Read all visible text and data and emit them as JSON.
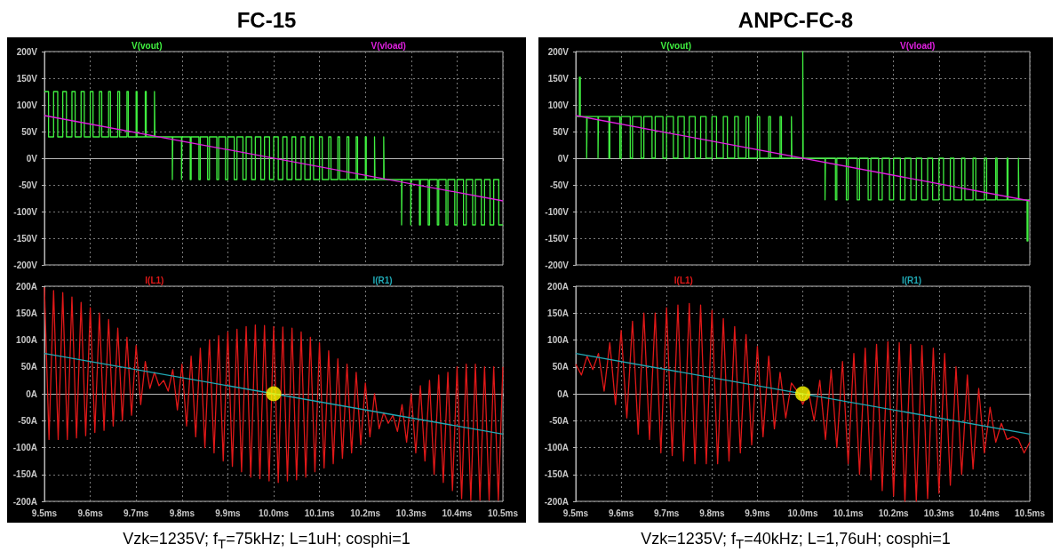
{
  "chart_data": [
    {
      "type": "line",
      "title": "FC-15",
      "xlim": [
        9.5,
        10.5
      ],
      "xticks": [
        9.5,
        9.6,
        9.7,
        9.8,
        9.9,
        10.0,
        10.1,
        10.2,
        10.3,
        10.4,
        10.5
      ],
      "ylim": [
        -200,
        200
      ],
      "yticks": [
        {
          "value": -200,
          "label": "-200V"
        },
        {
          "value": -150,
          "label": "-150V"
        },
        {
          "value": -100,
          "label": "-100V"
        },
        {
          "value": -50,
          "label": "-50V"
        },
        {
          "value": 0,
          "label": "0V"
        },
        {
          "value": 50,
          "label": "50V"
        },
        {
          "value": 100,
          "label": "100V"
        },
        {
          "value": 150,
          "label": "150V"
        },
        {
          "value": 200,
          "label": "200V"
        }
      ],
      "grid": true,
      "legend": "top",
      "tick_labels": "y",
      "series": [
        {
          "name": "V(vout)",
          "type": "step",
          "color": "#40f040",
          "x": [
            9.5,
            9.509,
            9.52,
            9.529,
            9.54,
            9.548,
            9.56,
            9.567,
            9.58,
            9.587,
            9.6,
            9.606,
            9.62,
            9.625,
            9.64,
            9.644,
            9.66,
            9.664,
            9.68,
            9.683,
            9.7,
            9.702,
            9.72,
            9.722,
            9.74,
            9.741,
            9.76,
            9.779,
            9.78,
            9.799,
            9.8,
            9.818,
            9.82,
            9.837,
            9.84,
            9.856,
            9.86,
            9.876,
            9.88,
            9.895,
            9.9,
            9.914,
            9.92,
            9.933,
            9.94,
            9.952,
            9.96,
            9.972,
            9.98,
            9.991,
            10.0,
            10.01,
            10.02,
            10.029,
            10.04,
            10.048,
            10.06,
            10.068,
            10.08,
            10.087,
            10.1,
            10.106,
            10.12,
            10.125,
            10.14,
            10.144,
            10.16,
            10.164,
            10.18,
            10.183,
            10.2,
            10.202,
            10.22,
            10.221,
            10.24,
            10.241,
            10.26,
            10.279,
            10.28,
            10.299,
            10.3,
            10.318,
            10.32,
            10.337,
            10.34,
            10.357,
            10.36,
            10.376,
            10.38,
            10.395,
            10.4,
            10.414,
            10.42,
            10.434,
            10.44,
            10.453,
            10.46,
            10.472,
            10.48,
            10.491,
            10.5
          ],
          "values": [
            125,
            40,
            125,
            40,
            125,
            40,
            125,
            40,
            125,
            40,
            125,
            40,
            125,
            40,
            125,
            40,
            125,
            40,
            125,
            40,
            125,
            40,
            125,
            40,
            125,
            40,
            40,
            -40,
            40,
            -40,
            40,
            -40,
            40,
            -40,
            40,
            -40,
            40,
            -40,
            40,
            -40,
            40,
            -40,
            40,
            -40,
            40,
            -40,
            40,
            -40,
            40,
            -40,
            40,
            -40,
            40,
            -40,
            40,
            -40,
            40,
            -40,
            40,
            -40,
            40,
            -40,
            40,
            -40,
            40,
            -40,
            40,
            -40,
            40,
            -40,
            40,
            -40,
            40,
            -40,
            40,
            -40,
            -40,
            -125,
            -40,
            -125,
            -40,
            -125,
            -40,
            -125,
            -40,
            -125,
            -40,
            -125,
            -40,
            -125,
            -40,
            -125,
            -40,
            -125,
            -40,
            -125,
            -40,
            -125,
            -40,
            -125,
            -125
          ]
        },
        {
          "name": "V(vload)",
          "color": "#e020e0",
          "x": [
            9.5,
            10.5
          ],
          "values": [
            80,
            -80
          ]
        }
      ]
    },
    {
      "type": "line",
      "annotations": [
        "Vzk=1235V; f$_{T}$=75kHz; L=1uH; cosphi=1"
      ],
      "xlim": [
        9.5,
        10.5
      ],
      "xticks": [
        {
          "value": 9.5,
          "label": "9.5ms"
        },
        {
          "value": 9.6,
          "label": "9.6ms"
        },
        {
          "value": 9.7,
          "label": "9.7ms"
        },
        {
          "value": 9.8,
          "label": "9.8ms"
        },
        {
          "value": 9.9,
          "label": "9.9ms"
        },
        {
          "value": 10.0,
          "label": "10.0ms"
        },
        {
          "value": 10.1,
          "label": "10.1ms"
        },
        {
          "value": 10.2,
          "label": "10.2ms"
        },
        {
          "value": 10.3,
          "label": "10.3ms"
        },
        {
          "value": 10.4,
          "label": "10.4ms"
        },
        {
          "value": 10.5,
          "label": "10.5ms"
        }
      ],
      "ylim": [
        -200,
        200
      ],
      "yticks": [
        {
          "value": -200,
          "label": "-200A"
        },
        {
          "value": -150,
          "label": "-150A"
        },
        {
          "value": -100,
          "label": "-100A"
        },
        {
          "value": -50,
          "label": "-50A"
        },
        {
          "value": 0,
          "label": "0A"
        },
        {
          "value": 50,
          "label": "50A"
        },
        {
          "value": 100,
          "label": "100A"
        },
        {
          "value": 150,
          "label": "150A"
        },
        {
          "value": 200,
          "label": "200A"
        }
      ],
      "grid": true,
      "legend": "top",
      "series": [
        {
          "name": "I(L1)",
          "color": "#e01818",
          "x": [
            9.5,
            9.51,
            9.52,
            9.53,
            9.54,
            9.55,
            9.56,
            9.57,
            9.58,
            9.59,
            9.6,
            9.61,
            9.62,
            9.63,
            9.64,
            9.65,
            9.66,
            9.67,
            9.68,
            9.69,
            9.7,
            9.71,
            9.72,
            9.73,
            9.74,
            9.75,
            9.76,
            9.77,
            9.78,
            9.79,
            9.8,
            9.81,
            9.82,
            9.83,
            9.84,
            9.85,
            9.86,
            9.87,
            9.88,
            9.89,
            9.9,
            9.91,
            9.92,
            9.93,
            9.94,
            9.95,
            9.96,
            9.97,
            9.98,
            9.99,
            10.0,
            10.01,
            10.02,
            10.03,
            10.04,
            10.05,
            10.06,
            10.07,
            10.08,
            10.09,
            10.1,
            10.11,
            10.12,
            10.13,
            10.14,
            10.15,
            10.16,
            10.17,
            10.18,
            10.19,
            10.2,
            10.21,
            10.22,
            10.23,
            10.24,
            10.25,
            10.26,
            10.27,
            10.28,
            10.29,
            10.3,
            10.31,
            10.32,
            10.33,
            10.34,
            10.35,
            10.36,
            10.37,
            10.38,
            10.39,
            10.4,
            10.41,
            10.42,
            10.43,
            10.44,
            10.45,
            10.46,
            10.47,
            10.48,
            10.49,
            10.5
          ],
          "values": [
            198,
            -85,
            192,
            -85,
            188,
            -85,
            180,
            -82,
            170,
            -78,
            160,
            -72,
            150,
            -68,
            138,
            -60,
            122,
            -50,
            105,
            -40,
            90,
            -20,
            60,
            10,
            40,
            15,
            25,
            5,
            45,
            -30,
            55,
            -60,
            70,
            -80,
            85,
            -100,
            100,
            -110,
            108,
            -125,
            115,
            -135,
            120,
            -145,
            125,
            -155,
            128,
            -158,
            127,
            -162,
            125,
            -165,
            124,
            -162,
            122,
            -160,
            115,
            -155,
            105,
            -145,
            95,
            -138,
            80,
            -130,
            65,
            -120,
            55,
            -110,
            40,
            -95,
            20,
            -80,
            0,
            -65,
            -35,
            -55,
            -40,
            -70,
            -20,
            -90,
            0,
            -110,
            15,
            -125,
            25,
            -150,
            35,
            -165,
            40,
            -180,
            50,
            -195,
            55,
            -198,
            55,
            -198,
            50,
            -198,
            50,
            -198,
            50
          ]
        },
        {
          "name": "I(R1)",
          "color": "#20a8b4",
          "x": [
            9.5,
            10.5
          ],
          "values": [
            75,
            -75
          ]
        },
        {
          "type": "scatter",
          "color": "#ffff00",
          "marker": "circle",
          "x": [
            10.0
          ],
          "values": [
            0
          ]
        }
      ]
    },
    {
      "type": "line",
      "title": "ANPC-FC-8",
      "xlim": [
        9.5,
        10.5
      ],
      "xticks": [
        9.5,
        9.6,
        9.7,
        9.8,
        9.9,
        10.0,
        10.1,
        10.2,
        10.3,
        10.4,
        10.5
      ],
      "ylim": [
        -200,
        200
      ],
      "yticks": [
        {
          "value": -200,
          "label": "-200V"
        },
        {
          "value": -150,
          "label": "-150V"
        },
        {
          "value": -100,
          "label": "-100V"
        },
        {
          "value": -50,
          "label": "-50V"
        },
        {
          "value": 0,
          "label": "0V"
        },
        {
          "value": 50,
          "label": "50V"
        },
        {
          "value": 100,
          "label": "100V"
        },
        {
          "value": 150,
          "label": "150V"
        },
        {
          "value": 200,
          "label": "200V"
        }
      ],
      "grid": true,
      "legend": "top",
      "tick_labels": "y",
      "series": [
        {
          "name": "V(vout)",
          "type": "step",
          "color": "#40f040",
          "x": [
            9.5,
            9.508,
            9.51,
            9.524,
            9.525,
            9.549,
            9.55,
            9.573,
            9.575,
            9.597,
            9.6,
            9.62,
            9.625,
            9.644,
            9.65,
            9.668,
            9.675,
            9.692,
            9.7,
            9.715,
            9.725,
            9.739,
            9.75,
            9.763,
            9.775,
            9.787,
            9.8,
            9.81,
            9.825,
            9.834,
            9.85,
            9.858,
            9.875,
            9.881,
            9.9,
            9.905,
            9.925,
            9.929,
            9.95,
            9.953,
            9.975,
            9.976,
            10.0,
            10.001,
            10.049,
            10.05,
            10.072,
            10.075,
            10.096,
            10.1,
            10.12,
            10.125,
            10.144,
            10.15,
            10.167,
            10.175,
            10.191,
            10.2,
            10.215,
            10.225,
            10.238,
            10.25,
            10.262,
            10.275,
            10.286,
            10.3,
            10.31,
            10.325,
            10.333,
            10.35,
            10.357,
            10.375,
            10.381,
            10.4,
            10.405,
            10.425,
            10.428,
            10.45,
            10.452,
            10.475,
            10.476,
            10.494,
            10.496,
            10.5
          ],
          "values": [
            78,
            152,
            78,
            0,
            78,
            0,
            78,
            0,
            78,
            0,
            78,
            0,
            78,
            0,
            78,
            0,
            78,
            0,
            78,
            0,
            78,
            0,
            78,
            0,
            78,
            0,
            78,
            0,
            78,
            0,
            78,
            0,
            78,
            0,
            78,
            0,
            78,
            0,
            78,
            0,
            78,
            0,
            200,
            0,
            -78,
            0,
            -78,
            0,
            -78,
            0,
            -78,
            0,
            -78,
            0,
            -78,
            0,
            -78,
            0,
            -78,
            0,
            -78,
            0,
            -78,
            0,
            -78,
            0,
            -78,
            0,
            -78,
            0,
            -78,
            0,
            -78,
            0,
            -78,
            0,
            -78,
            0,
            -78,
            0,
            -78,
            -155,
            -78,
            -78
          ]
        },
        {
          "name": "V(vload)",
          "color": "#e020e0",
          "x": [
            9.5,
            10.5
          ],
          "values": [
            80,
            -80
          ]
        }
      ]
    },
    {
      "type": "line",
      "annotations": [
        "Vzk=1235V; f$_{T}$=40kHz; L=1,76uH; cosphi=1"
      ],
      "xlim": [
        9.5,
        10.5
      ],
      "xticks": [
        {
          "value": 9.5,
          "label": "9.5ms"
        },
        {
          "value": 9.6,
          "label": "9.6ms"
        },
        {
          "value": 9.7,
          "label": "9.7ms"
        },
        {
          "value": 9.8,
          "label": "9.8ms"
        },
        {
          "value": 9.9,
          "label": "9.9ms"
        },
        {
          "value": 10.0,
          "label": "10.0ms"
        },
        {
          "value": 10.1,
          "label": "10.1ms"
        },
        {
          "value": 10.2,
          "label": "10.2ms"
        },
        {
          "value": 10.3,
          "label": "10.3ms"
        },
        {
          "value": 10.4,
          "label": "10.4ms"
        },
        {
          "value": 10.5,
          "label": "10.5ms"
        }
      ],
      "ylim": [
        -200,
        200
      ],
      "yticks": [
        {
          "value": -200,
          "label": "-200A"
        },
        {
          "value": -150,
          "label": "-150A"
        },
        {
          "value": -100,
          "label": "-100A"
        },
        {
          "value": -50,
          "label": "-50A"
        },
        {
          "value": 0,
          "label": "0A"
        },
        {
          "value": 50,
          "label": "50A"
        },
        {
          "value": 100,
          "label": "100A"
        },
        {
          "value": 150,
          "label": "150A"
        },
        {
          "value": 200,
          "label": "200A"
        }
      ],
      "grid": true,
      "legend": "top",
      "series": [
        {
          "name": "I(L1)",
          "color": "#e01818",
          "x": [
            9.5,
            9.5125,
            9.525,
            9.5375,
            9.55,
            9.5625,
            9.575,
            9.5875,
            9.6,
            9.6125,
            9.625,
            9.6375,
            9.65,
            9.6625,
            9.675,
            9.6875,
            9.7,
            9.7125,
            9.725,
            9.7375,
            9.75,
            9.7625,
            9.775,
            9.7875,
            9.8,
            9.8125,
            9.825,
            9.8375,
            9.85,
            9.8625,
            9.875,
            9.8875,
            9.9,
            9.9125,
            9.925,
            9.9375,
            9.95,
            9.9625,
            9.975,
            9.9875,
            10.0,
            10.0125,
            10.025,
            10.0375,
            10.05,
            10.0625,
            10.075,
            10.0875,
            10.1,
            10.1125,
            10.125,
            10.1375,
            10.15,
            10.1625,
            10.175,
            10.1875,
            10.2,
            10.2125,
            10.225,
            10.2375,
            10.25,
            10.2625,
            10.275,
            10.2875,
            10.3,
            10.3125,
            10.325,
            10.3375,
            10.35,
            10.3625,
            10.375,
            10.3875,
            10.4,
            10.4125,
            10.425,
            10.4375,
            10.45,
            10.4625,
            10.475,
            10.4875,
            10.5
          ],
          "values": [
            55,
            35,
            70,
            45,
            75,
            5,
            95,
            -20,
            118,
            -45,
            135,
            -75,
            150,
            -85,
            150,
            -110,
            160,
            -115,
            165,
            -125,
            168,
            -130,
            165,
            -130,
            155,
            -130,
            140,
            -125,
            125,
            -110,
            110,
            -95,
            88,
            -80,
            70,
            -65,
            40,
            -45,
            20,
            5,
            -20,
            5,
            -50,
            25,
            -85,
            45,
            -100,
            60,
            -130,
            75,
            -150,
            85,
            -160,
            92,
            -180,
            97,
            -190,
            95,
            -200,
            92,
            -200,
            90,
            -195,
            85,
            -185,
            75,
            -170,
            50,
            -150,
            35,
            -140,
            10,
            -110,
            -25,
            -90,
            -55,
            -85,
            -80,
            -85,
            -110,
            -90
          ]
        },
        {
          "name": "I(R1)",
          "color": "#20a8b4",
          "x": [
            9.5,
            10.5
          ],
          "values": [
            75,
            -75
          ]
        },
        {
          "type": "scatter",
          "color": "#ffff00",
          "marker": "circle",
          "x": [
            10.0
          ],
          "values": [
            0
          ]
        }
      ]
    }
  ]
}
